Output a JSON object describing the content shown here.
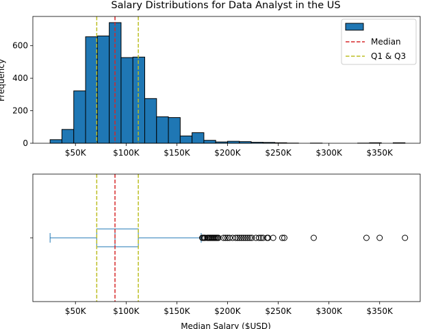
{
  "chart_data": [
    {
      "type": "histogram",
      "title": "Salary Distributions for Data Analyst in the US",
      "ylabel": "Frequency",
      "xlabel": "",
      "xlim": [
        8000,
        390000
      ],
      "ylim": [
        0,
        780
      ],
      "x_ticks": [
        50000,
        100000,
        150000,
        200000,
        250000,
        300000,
        350000
      ],
      "x_tick_labels": [
        "$50K",
        "$100K",
        "$150K",
        "$200K",
        "$250K",
        "$300K",
        "$350K"
      ],
      "y_ticks": [
        0,
        200,
        400,
        600
      ],
      "y_tick_labels": [
        "0",
        "200",
        "400",
        "600"
      ],
      "bar_color": "#1f77b4",
      "bins": [
        {
          "x0": 25000,
          "x1": 36667,
          "value": 22
        },
        {
          "x0": 36667,
          "x1": 48333,
          "value": 85
        },
        {
          "x0": 48333,
          "x1": 60000,
          "value": 322
        },
        {
          "x0": 60000,
          "x1": 71667,
          "value": 655
        },
        {
          "x0": 71667,
          "x1": 83333,
          "value": 660
        },
        {
          "x0": 83333,
          "x1": 95000,
          "value": 742
        },
        {
          "x0": 95000,
          "x1": 106667,
          "value": 527
        },
        {
          "x0": 106667,
          "x1": 118333,
          "value": 530
        },
        {
          "x0": 118333,
          "x1": 130000,
          "value": 275
        },
        {
          "x0": 130000,
          "x1": 141667,
          "value": 163
        },
        {
          "x0": 141667,
          "x1": 153333,
          "value": 158
        },
        {
          "x0": 153333,
          "x1": 165000,
          "value": 45
        },
        {
          "x0": 165000,
          "x1": 176667,
          "value": 65
        },
        {
          "x0": 176667,
          "x1": 188333,
          "value": 18
        },
        {
          "x0": 188333,
          "x1": 200000,
          "value": 8
        },
        {
          "x0": 200000,
          "x1": 211667,
          "value": 12
        },
        {
          "x0": 211667,
          "x1": 223333,
          "value": 10
        },
        {
          "x0": 223333,
          "x1": 235000,
          "value": 6
        },
        {
          "x0": 235000,
          "x1": 246667,
          "value": 5
        },
        {
          "x0": 246667,
          "x1": 258333,
          "value": 3
        },
        {
          "x0": 258333,
          "x1": 270000,
          "value": 1
        },
        {
          "x0": 270000,
          "x1": 281667,
          "value": 0
        },
        {
          "x0": 281667,
          "x1": 293333,
          "value": 1
        },
        {
          "x0": 293333,
          "x1": 305000,
          "value": 0
        },
        {
          "x0": 305000,
          "x1": 316667,
          "value": 0
        },
        {
          "x0": 316667,
          "x1": 328333,
          "value": 0
        },
        {
          "x0": 328333,
          "x1": 340000,
          "value": 1
        },
        {
          "x0": 340000,
          "x1": 351667,
          "value": 3
        },
        {
          "x0": 351667,
          "x1": 363333,
          "value": 0
        },
        {
          "x0": 363333,
          "x1": 375000,
          "value": 3
        }
      ],
      "reference_lines": [
        {
          "name": "Median",
          "x": 89000,
          "color": "#d62728",
          "style": "dashed"
        },
        {
          "name": "Q1 & Q3",
          "x": 71000,
          "color": "#bcbd22",
          "style": "dashed"
        },
        {
          "name": "Q1 & Q3",
          "x": 112000,
          "color": "#bcbd22",
          "style": "dashed"
        }
      ],
      "legend": {
        "placement": "top-right",
        "entries": [
          {
            "label": "",
            "kind": "patch",
            "color": "#1f77b4"
          },
          {
            "label": "Median",
            "kind": "line",
            "color": "#d62728"
          },
          {
            "label": "Q1 & Q3",
            "kind": "line",
            "color": "#bcbd22"
          }
        ]
      }
    },
    {
      "type": "boxplot",
      "orientation": "horizontal",
      "xlabel": "Median Salary ($USD)",
      "xlim": [
        8000,
        390000
      ],
      "x_ticks": [
        50000,
        100000,
        150000,
        200000,
        250000,
        300000,
        350000
      ],
      "x_tick_labels": [
        "$50K",
        "$100K",
        "$150K",
        "$200K",
        "$250K",
        "$300K",
        "$350K"
      ],
      "box_color": "#1f77b4",
      "whisker_low": 25000,
      "q1": 71000,
      "median": 89000,
      "q3": 112000,
      "whisker_high": 174000,
      "outliers": [
        175000,
        176000,
        177000,
        178000,
        180000,
        181000,
        182000,
        183000,
        184000,
        185000,
        186000,
        187000,
        188000,
        189000,
        190000,
        191000,
        196000,
        198000,
        200000,
        202000,
        205000,
        208000,
        210000,
        212000,
        214000,
        216000,
        218000,
        220000,
        222000,
        224000,
        228000,
        231000,
        233000,
        235000,
        239000,
        240000,
        245000,
        254000,
        256000,
        285000,
        337000,
        350000,
        375000
      ],
      "reference_lines": [
        {
          "name": "Median",
          "x": 89000,
          "color": "#d62728",
          "style": "dashed"
        },
        {
          "name": "Q1 & Q3",
          "x": 71000,
          "color": "#bcbd22",
          "style": "dashed"
        },
        {
          "name": "Q1 & Q3",
          "x": 112000,
          "color": "#bcbd22",
          "style": "dashed"
        }
      ]
    }
  ]
}
